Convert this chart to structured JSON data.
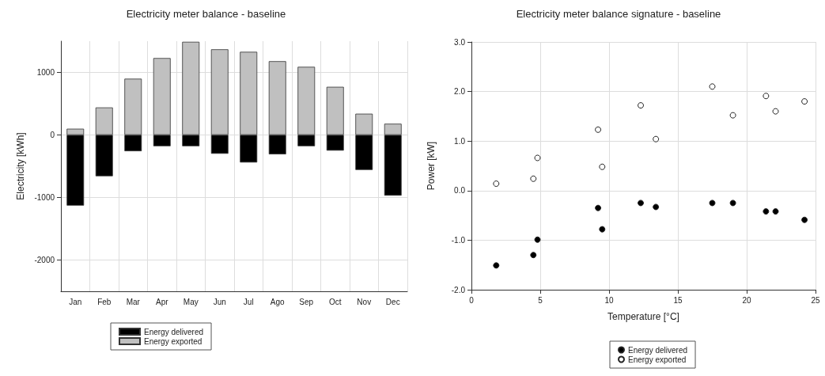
{
  "chart_data": [
    {
      "type": "bar",
      "title": "Electricity meter balance - baseline",
      "ylabel": "Electricity [kWh]",
      "categories": [
        "Jan",
        "Feb",
        "Mar",
        "Apr",
        "May",
        "Jun",
        "Jul",
        "Ago",
        "Sep",
        "Oct",
        "Nov",
        "Dec"
      ],
      "stacked": true,
      "series": [
        {
          "name": "Energy delivered",
          "color": "#000000",
          "values": [
            -1130,
            -660,
            -260,
            -180,
            -180,
            -300,
            -440,
            -310,
            -180,
            -250,
            -560,
            -970
          ]
        },
        {
          "name": "Energy exported",
          "color": "#c0c0c0",
          "values": [
            100,
            440,
            900,
            1230,
            1490,
            1370,
            1330,
            1180,
            1090,
            770,
            340,
            180
          ]
        }
      ],
      "ylim": [
        -2500,
        1500
      ],
      "yticks": [
        -2000,
        -1000,
        0,
        1000
      ],
      "grid": true,
      "legend": "bottom"
    },
    {
      "type": "scatter",
      "title": "Electricity meter balance signature - baseline",
      "xlabel": "Temperature [°C]",
      "ylabel": "Power [kW]",
      "marker": "circle",
      "series": [
        {
          "name": "Energy delivered",
          "color": "#000000",
          "x": [
            1.8,
            4.5,
            4.8,
            9.2,
            9.5,
            12.3,
            13.4,
            17.5,
            19.0,
            21.4,
            22.1,
            24.2
          ],
          "values": [
            -1.51,
            -1.3,
            -0.99,
            -0.35,
            -0.78,
            -0.25,
            -0.33,
            -0.25,
            -0.25,
            -0.42,
            -0.42,
            -0.59
          ]
        },
        {
          "name": "Energy exported",
          "color": "#ffffff",
          "x": [
            1.8,
            4.5,
            4.8,
            9.2,
            9.5,
            12.3,
            13.4,
            17.5,
            19.0,
            21.4,
            22.1,
            24.2
          ],
          "values": [
            0.14,
            0.24,
            0.66,
            1.23,
            0.48,
            1.72,
            1.04,
            2.1,
            1.52,
            1.91,
            1.6,
            1.8
          ]
        }
      ],
      "xlim": [
        0,
        25
      ],
      "xticks": [
        0,
        5,
        10,
        15,
        20,
        25
      ],
      "ylim": [
        -2,
        3
      ],
      "yticks": [
        {
          "value": -2,
          "label": "-2.0"
        },
        {
          "value": -1,
          "label": "-1.0"
        },
        {
          "value": 0,
          "label": "0.0"
        },
        {
          "value": 1,
          "label": "1.0"
        },
        {
          "value": 2,
          "label": "2.0"
        },
        {
          "value": 3,
          "label": "3.0"
        }
      ],
      "grid": true,
      "legend": "bottom"
    }
  ]
}
